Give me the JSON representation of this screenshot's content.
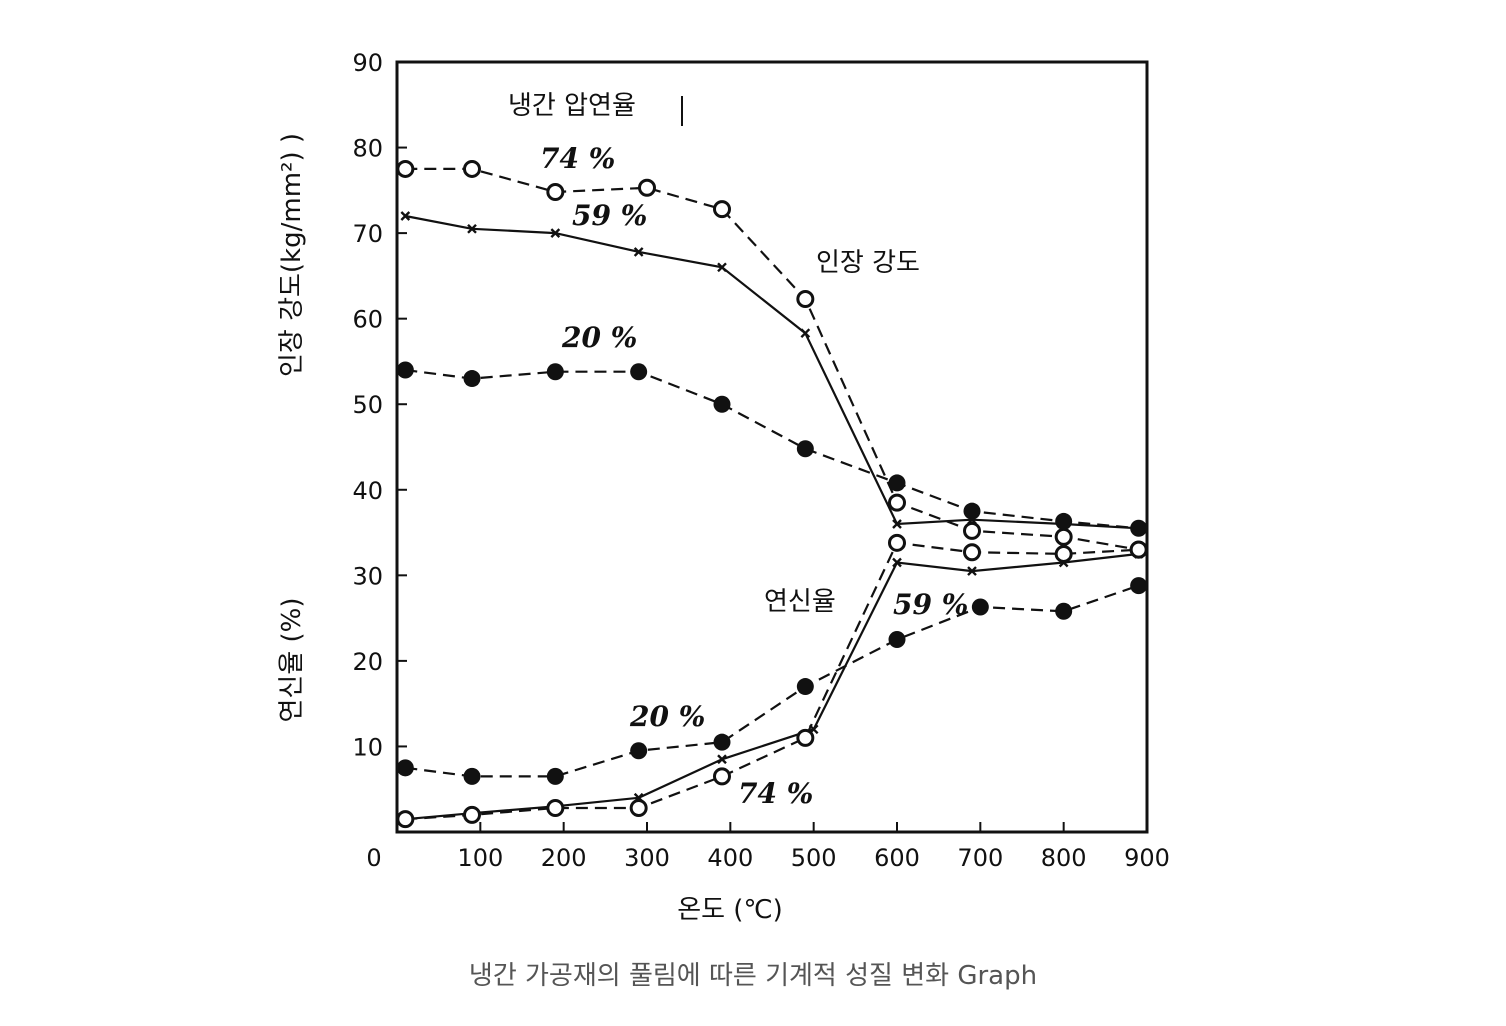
{
  "caption": "냉간 가공재의 풀림에 따른 기계적 성질 변화 Graph",
  "chart_data": {
    "type": "line",
    "title": "",
    "xlabel": "온도 (℃)",
    "ylabel_upper": "인장 강도(kg/mm²) )",
    "ylabel_lower": "연신율 (%)",
    "xlim": [
      0,
      900
    ],
    "ylim": [
      0,
      90
    ],
    "x_ticks": [
      "0",
      "100",
      "200",
      "300",
      "400",
      "500",
      "600",
      "700",
      "800",
      "900"
    ],
    "y_ticks": [
      "10",
      "20",
      "30",
      "40",
      "50",
      "60",
      "70",
      "80",
      "90"
    ],
    "legend_title": "냉간 압연율",
    "annotations": {
      "tensile_group": "인장 강도",
      "elongation_group": "연신율",
      "ts_74": "74 %",
      "ts_59": "59 %",
      "ts_20": "20 %",
      "el_20": "20 %",
      "el_59": "59 %",
      "el_74": "74 %"
    },
    "series": [
      {
        "group": "tensile",
        "marker": "open-circle",
        "line": "dashed",
        "x": [
          10,
          90,
          190,
          300,
          390,
          490,
          600,
          690,
          800,
          890
        ],
        "y": [
          77.5,
          77.5,
          74.8,
          75.3,
          72.8,
          62.3,
          38.5,
          35.2,
          34.5,
          33
        ]
      },
      {
        "group": "tensile",
        "marker": "cross",
        "line": "solid",
        "x": [
          10,
          90,
          190,
          290,
          390,
          490,
          600,
          690,
          800,
          890
        ],
        "y": [
          72,
          70.5,
          70,
          67.8,
          66,
          58.3,
          36,
          36.5,
          36,
          35.5
        ]
      },
      {
        "group": "tensile",
        "marker": "filled-circle",
        "line": "dashed",
        "x": [
          10,
          90,
          190,
          290,
          390,
          490,
          600,
          690,
          800,
          890
        ],
        "y": [
          54,
          53,
          53.8,
          53.8,
          50,
          44.8,
          40.8,
          37.5,
          36.3,
          35.5
        ]
      },
      {
        "group": "elongation",
        "marker": "filled-circle",
        "line": "dashed",
        "x": [
          10,
          90,
          190,
          290,
          390,
          490,
          600,
          700,
          800,
          890
        ],
        "y": [
          7.5,
          6.5,
          6.5,
          9.5,
          10.5,
          17,
          22.5,
          26.3,
          25.8,
          28.8
        ]
      },
      {
        "group": "elongation",
        "marker": "cross",
        "line": "solid",
        "x": [
          10,
          90,
          190,
          290,
          390,
          500,
          600,
          690,
          800,
          890
        ],
        "y": [
          1.5,
          2.2,
          3,
          4,
          8.5,
          12,
          31.5,
          30.5,
          31.5,
          32.5
        ]
      },
      {
        "group": "elongation",
        "marker": "open-circle",
        "line": "dashed",
        "x": [
          10,
          90,
          190,
          290,
          390,
          490,
          600,
          690,
          800,
          890
        ],
        "y": [
          1.5,
          2,
          2.8,
          2.8,
          6.5,
          11,
          33.8,
          32.7,
          32.5,
          33
        ]
      }
    ]
  }
}
